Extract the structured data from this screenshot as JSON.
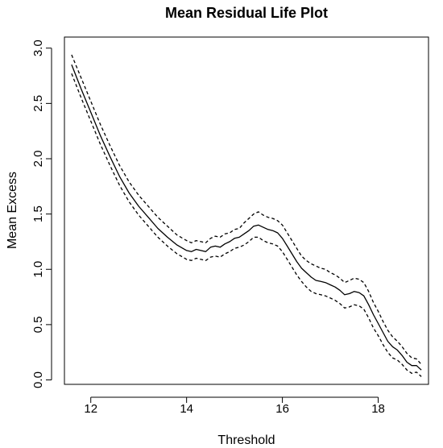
{
  "chart_data": {
    "type": "line",
    "title": "Mean Residual Life Plot",
    "xlabel": "Threshold",
    "ylabel": "Mean Excess",
    "xlim": [
      11.45,
      19.05
    ],
    "ylim": [
      -0.04,
      3.1
    ],
    "x_ticks": [
      12,
      14,
      16,
      18
    ],
    "x_tick_labels": [
      "12",
      "14",
      "16",
      "18"
    ],
    "y_ticks": [
      0.0,
      0.5,
      1.0,
      1.5,
      2.0,
      2.5,
      3.0
    ],
    "y_tick_labels": [
      "0.0",
      "0.5",
      "1.0",
      "1.5",
      "2.0",
      "2.5",
      "3.0"
    ],
    "grid": false,
    "legend": "none",
    "x": [
      11.6,
      11.8,
      12.0,
      12.2,
      12.4,
      12.6,
      12.8,
      13.0,
      13.2,
      13.4,
      13.6,
      13.8,
      14.0,
      14.1,
      14.2,
      14.3,
      14.4,
      14.5,
      14.6,
      14.7,
      14.8,
      14.9,
      15.0,
      15.1,
      15.2,
      15.3,
      15.4,
      15.5,
      15.6,
      15.7,
      15.8,
      15.9,
      16.0,
      16.1,
      16.2,
      16.3,
      16.4,
      16.5,
      16.6,
      16.7,
      16.8,
      16.9,
      17.0,
      17.1,
      17.2,
      17.3,
      17.4,
      17.5,
      17.6,
      17.7,
      17.8,
      17.9,
      18.0,
      18.1,
      18.2,
      18.3,
      18.4,
      18.5,
      18.6,
      18.7,
      18.8,
      18.9
    ],
    "series": [
      {
        "style": "dashed",
        "values": [
          2.94,
          2.73,
          2.52,
          2.31,
          2.12,
          1.94,
          1.79,
          1.67,
          1.57,
          1.47,
          1.39,
          1.31,
          1.26,
          1.24,
          1.26,
          1.25,
          1.24,
          1.28,
          1.3,
          1.29,
          1.32,
          1.33,
          1.36,
          1.37,
          1.42,
          1.46,
          1.5,
          1.52,
          1.49,
          1.47,
          1.46,
          1.44,
          1.4,
          1.33,
          1.26,
          1.19,
          1.12,
          1.08,
          1.05,
          1.03,
          1.01,
          1.0,
          0.97,
          0.95,
          0.92,
          0.88,
          0.9,
          0.92,
          0.91,
          0.88,
          0.8,
          0.7,
          0.62,
          0.53,
          0.45,
          0.39,
          0.35,
          0.3,
          0.24,
          0.2,
          0.19,
          0.14
        ]
      },
      {
        "style": "solid",
        "values": [
          2.85,
          2.63,
          2.42,
          2.21,
          2.02,
          1.84,
          1.69,
          1.57,
          1.47,
          1.37,
          1.29,
          1.22,
          1.17,
          1.16,
          1.18,
          1.17,
          1.16,
          1.2,
          1.21,
          1.2,
          1.23,
          1.25,
          1.28,
          1.29,
          1.32,
          1.35,
          1.39,
          1.4,
          1.38,
          1.36,
          1.35,
          1.33,
          1.28,
          1.21,
          1.14,
          1.07,
          1.01,
          0.97,
          0.93,
          0.9,
          0.89,
          0.88,
          0.86,
          0.84,
          0.81,
          0.77,
          0.78,
          0.8,
          0.79,
          0.76,
          0.68,
          0.59,
          0.51,
          0.43,
          0.35,
          0.3,
          0.27,
          0.22,
          0.16,
          0.13,
          0.13,
          0.09
        ]
      },
      {
        "style": "dashed",
        "values": [
          2.77,
          2.55,
          2.34,
          2.13,
          1.94,
          1.76,
          1.61,
          1.49,
          1.39,
          1.29,
          1.21,
          1.14,
          1.09,
          1.08,
          1.1,
          1.09,
          1.08,
          1.11,
          1.12,
          1.11,
          1.14,
          1.16,
          1.19,
          1.2,
          1.22,
          1.25,
          1.29,
          1.29,
          1.26,
          1.24,
          1.23,
          1.21,
          1.16,
          1.09,
          1.02,
          0.95,
          0.89,
          0.84,
          0.8,
          0.78,
          0.77,
          0.76,
          0.74,
          0.72,
          0.69,
          0.65,
          0.66,
          0.68,
          0.67,
          0.64,
          0.56,
          0.47,
          0.4,
          0.32,
          0.25,
          0.2,
          0.18,
          0.14,
          0.09,
          0.06,
          0.07,
          0.03
        ]
      }
    ]
  }
}
